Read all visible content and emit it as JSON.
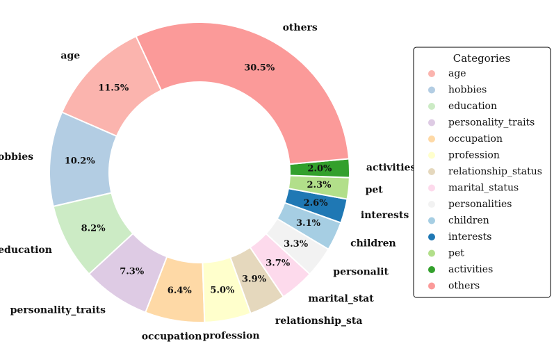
{
  "chart_data": {
    "type": "pie",
    "variant": "donut",
    "legend_title": "Categories",
    "legend_position": "right",
    "categories": [
      "age",
      "hobbies",
      "education",
      "personality_traits",
      "occupation",
      "profession",
      "relationship_status",
      "marital_status",
      "personalities",
      "children",
      "interests",
      "pet",
      "activities",
      "others"
    ],
    "outer_labels": [
      "age",
      "hobbies",
      "education",
      "personality_traits",
      "occupation",
      "profession",
      "relationship_sta",
      "marital_stat",
      "personalit",
      "children",
      "interests",
      "pet",
      "activities",
      "others"
    ],
    "values": [
      11.5,
      10.2,
      8.2,
      7.3,
      6.4,
      5.0,
      3.9,
      3.7,
      3.3,
      3.1,
      2.6,
      2.3,
      2.0,
      30.5
    ],
    "value_labels": [
      "11.5%",
      "10.2%",
      "8.2%",
      "7.3%",
      "6.4%",
      "5.0%",
      "3.9%",
      "3.7%",
      "3.3%",
      "3.1%",
      "2.6%",
      "2.3%",
      "2.0%",
      "30.5%"
    ],
    "colors": [
      "#fbb4ae",
      "#b3cde3",
      "#ccebc5",
      "#decbe4",
      "#fed9a6",
      "#ffffcc",
      "#e5d8bd",
      "#fddaec",
      "#f2f2f2",
      "#a6cee3",
      "#1f78b4",
      "#b2df8a",
      "#33a02c",
      "#fb9a99"
    ]
  }
}
